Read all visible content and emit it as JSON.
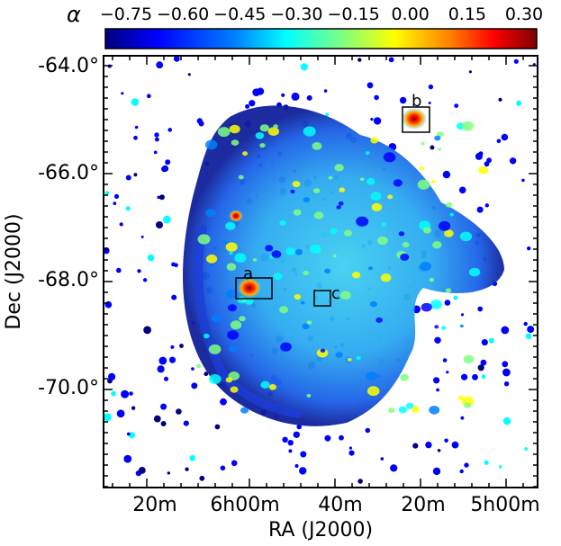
{
  "colorbar": {
    "symbol": "α",
    "ticks": [
      "−0.75",
      "−0.60",
      "−0.45",
      "−0.30",
      "−0.15",
      "0.00",
      "0.15",
      "0.30"
    ]
  },
  "axes": {
    "xlabel": "RA (J2000)",
    "ylabel": "Dec (J2000)",
    "xticks": [
      "20m",
      "6h00m",
      "40m",
      "20m",
      "5h00m"
    ],
    "yticks": [
      "-64.0°",
      "-66.0°",
      "-68.0°",
      "-70.0°"
    ]
  },
  "regions": [
    {
      "label": "a"
    },
    {
      "label": "b"
    },
    {
      "label": "c"
    }
  ],
  "colors": {
    "scale": [
      "#00007f",
      "#0000ff",
      "#007fff",
      "#00ffff",
      "#7fff7f",
      "#ffff00",
      "#ff7f00",
      "#ff0000",
      "#7f0000"
    ],
    "frame": "#000000",
    "background": "#ffffff"
  }
}
